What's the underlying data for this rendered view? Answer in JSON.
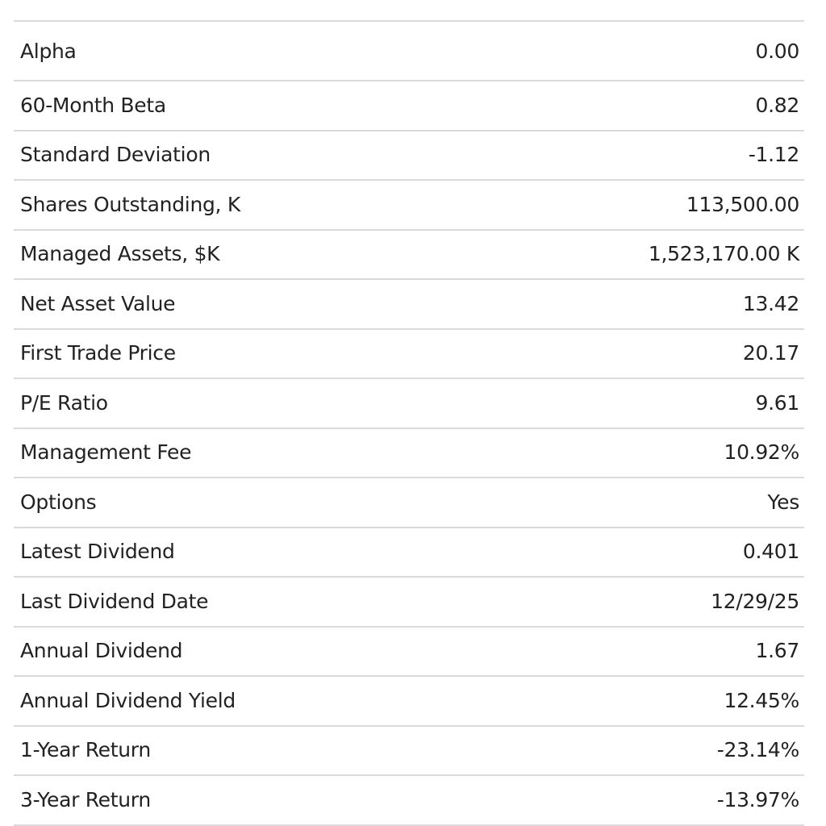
{
  "section": {
    "title": ""
  },
  "stats": {
    "rows": [
      {
        "label": "Alpha",
        "value": "0.00"
      },
      {
        "label": "60-Month Beta",
        "value": "0.82"
      },
      {
        "label": "Standard Deviation",
        "value": "-1.12"
      },
      {
        "label": "Shares Outstanding, K",
        "value": "113,500.00"
      },
      {
        "label": "Managed Assets, $K",
        "value": "1,523,170.00 K"
      },
      {
        "label": "Net Asset Value",
        "value": "13.42"
      },
      {
        "label": "First Trade Price",
        "value": "20.17"
      },
      {
        "label": "P/E Ratio",
        "value": "9.61"
      },
      {
        "label": "Management Fee",
        "value": "10.92%"
      },
      {
        "label": "Options",
        "value": "Yes"
      },
      {
        "label": "Latest Dividend",
        "value": "0.401"
      },
      {
        "label": "Last Dividend Date",
        "value": "12/29/25"
      },
      {
        "label": "Annual Dividend",
        "value": "1.67"
      },
      {
        "label": "Annual Dividend Yield",
        "value": "12.45%"
      },
      {
        "label": "1-Year Return",
        "value": "-23.14%"
      },
      {
        "label": "3-Year Return",
        "value": "-13.97%"
      }
    ]
  },
  "colors": {
    "text": "#222222",
    "divider": "#dadada",
    "background": "#ffffff"
  }
}
